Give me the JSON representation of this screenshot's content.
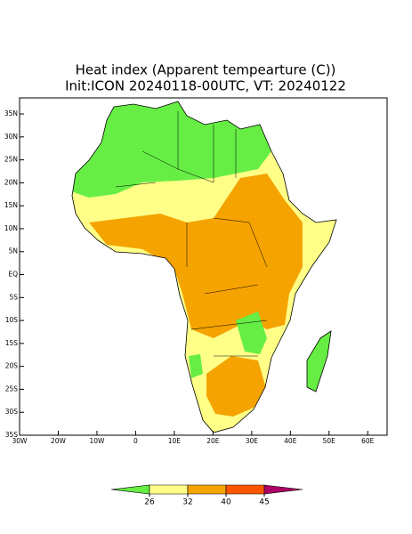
{
  "title": "Heat index (Apparent tempearture (C))",
  "subtitle": "Init:ICON 20240118-00UTC, VT: 20240122",
  "map": {
    "xlim": [
      -30,
      65
    ],
    "ylim": [
      -35,
      38.5
    ],
    "xticks": [
      {
        "value": -30,
        "label": "30W"
      },
      {
        "value": -20,
        "label": "20W"
      },
      {
        "value": -10,
        "label": "10W"
      },
      0,
      {
        "value": 10,
        "label": "10E"
      },
      {
        "value": 20,
        "label": "20E"
      },
      {
        "value": 30,
        "label": "30E"
      },
      {
        "value": 40,
        "label": "40E"
      },
      {
        "value": 50,
        "label": "50E"
      },
      {
        "value": 60,
        "label": "60E"
      }
    ],
    "yticks": [
      {
        "value": 35,
        "label": "35N"
      },
      {
        "value": 30,
        "label": "30N"
      },
      {
        "value": 25,
        "label": "25N"
      },
      {
        "value": 20,
        "label": "20N"
      },
      {
        "value": 15,
        "label": "15N"
      },
      {
        "value": 10,
        "label": "10N"
      },
      {
        "value": 5,
        "label": "5N"
      },
      {
        "value": 0,
        "label": "EQ"
      },
      {
        "value": -5,
        "label": "5S"
      },
      {
        "value": -10,
        "label": "10S"
      },
      {
        "value": -15,
        "label": "15S"
      },
      {
        "value": -20,
        "label": "20S"
      },
      {
        "value": -25,
        "label": "25S"
      },
      {
        "value": -30,
        "label": "30S"
      },
      {
        "value": -35,
        "label": "35S"
      }
    ]
  },
  "colorbar": {
    "colors": [
      "#66ee44",
      "#ffff88",
      "#f5a300",
      "#ff5500",
      "#aa0066"
    ],
    "ticks": [
      26,
      32,
      40,
      45
    ]
  }
}
